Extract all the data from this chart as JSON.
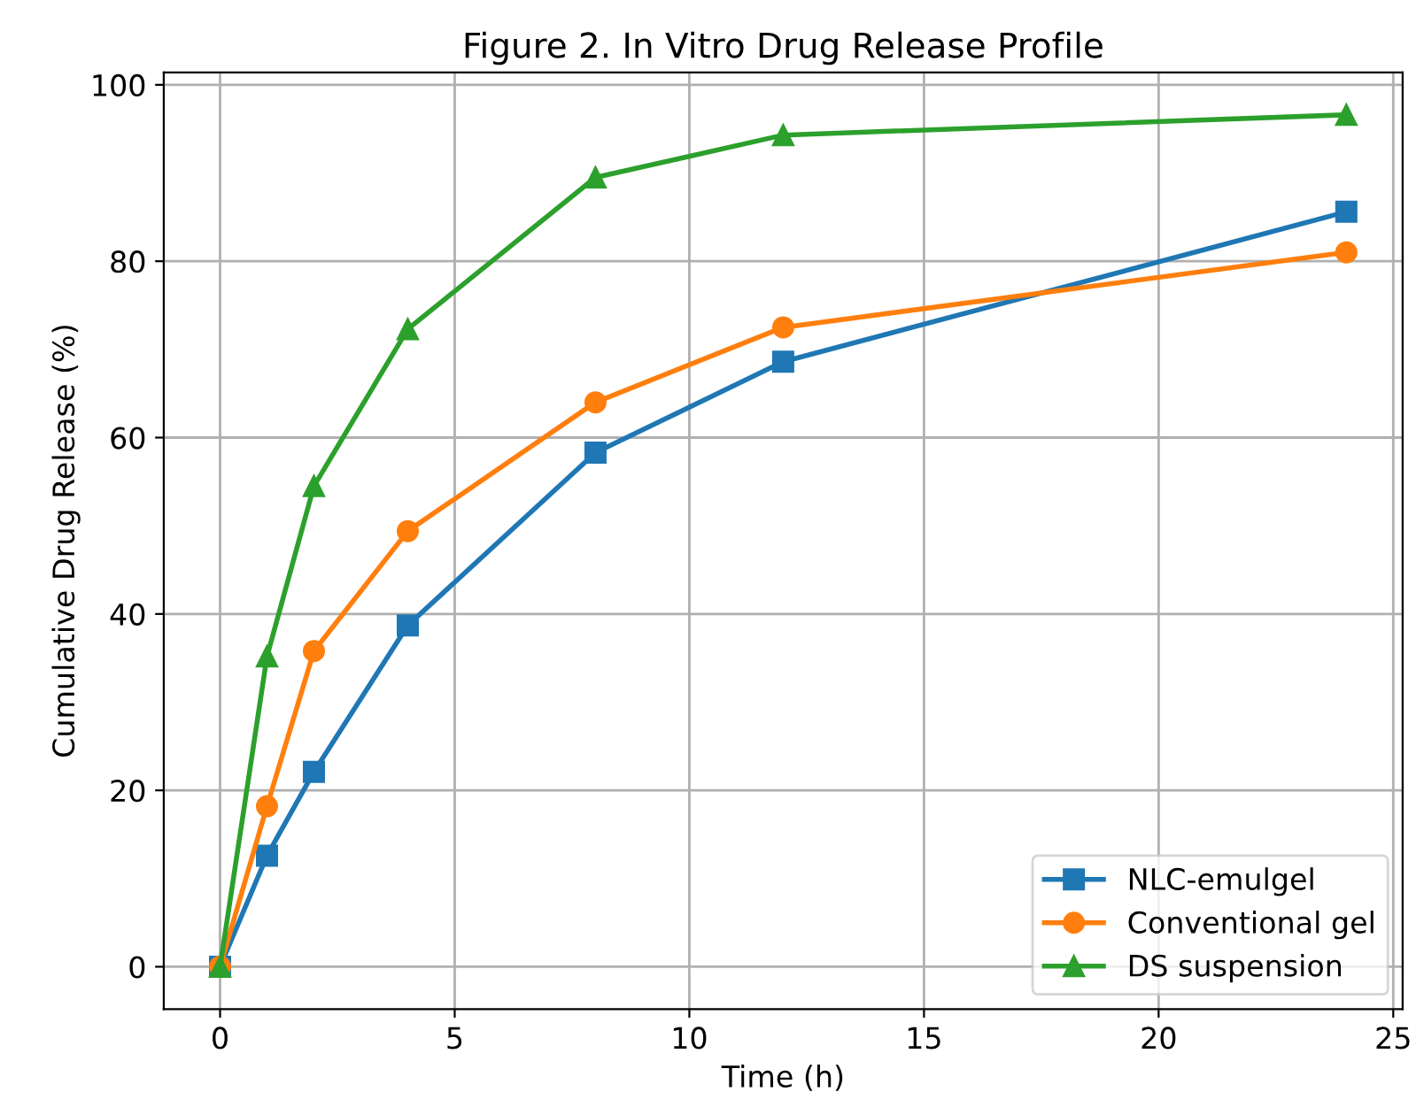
{
  "chart_data": {
    "type": "line",
    "title": "Figure 2. In Vitro Drug Release Profile",
    "xlabel": "Time (h)",
    "ylabel": "Cumulative Drug Release (%)",
    "x": [
      0,
      1,
      2,
      4,
      8,
      12,
      24
    ],
    "series": [
      {
        "name": "NLC-emulgel",
        "color": "#1f77b4",
        "marker": "square",
        "values": [
          0,
          12.6,
          22.1,
          38.7,
          58.3,
          68.6,
          85.6
        ]
      },
      {
        "name": "Conventional gel",
        "color": "#ff7f0e",
        "marker": "circle",
        "values": [
          0,
          18.2,
          35.8,
          49.4,
          64.0,
          72.5,
          81.0
        ]
      },
      {
        "name": "DS suspension",
        "color": "#2ca02c",
        "marker": "triangle",
        "values": [
          0,
          35.2,
          54.5,
          72.3,
          89.5,
          94.3,
          96.6
        ]
      }
    ],
    "xlim": [
      -1.2,
      25.2
    ],
    "ylim": [
      -4.8,
      101.4
    ],
    "xticks": [
      0,
      5,
      10,
      15,
      20,
      25
    ],
    "yticks": [
      0,
      20,
      40,
      60,
      80,
      100
    ],
    "grid": true,
    "legend": "bottom right",
    "line_style": "solid"
  }
}
